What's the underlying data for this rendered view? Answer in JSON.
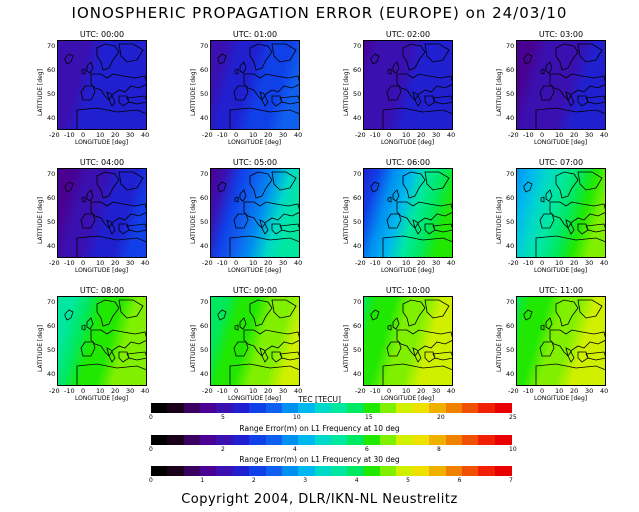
{
  "title": "IONOSPHERIC PROPAGATION ERROR (EUROPE) on 24/03/10",
  "copyright": "Copyright 2004, DLR/IKN-NL Neustrelitz",
  "axes": {
    "x_label": "LONGITUDE [deg]",
    "y_label": "LATITUDE [deg]",
    "x_ticks": [
      "-20",
      "-10",
      "0",
      "10",
      "20",
      "30",
      "40"
    ],
    "y_ticks": [
      "70",
      "60",
      "50",
      "40"
    ]
  },
  "panels": [
    {
      "utc": "UTC: 00:00",
      "tec_w": 4.5,
      "tec_e": 6.5
    },
    {
      "utc": "UTC: 01:00",
      "tec_w": 4.5,
      "tec_e": 8.0
    },
    {
      "utc": "UTC: 02:00",
      "tec_w": 4.0,
      "tec_e": 6.5
    },
    {
      "utc": "UTC: 03:00",
      "tec_w": 3.5,
      "tec_e": 6.0
    },
    {
      "utc": "UTC: 04:00",
      "tec_w": 3.0,
      "tec_e": 7.0
    },
    {
      "utc": "UTC: 05:00",
      "tec_w": 3.5,
      "tec_e": 13.0
    },
    {
      "utc": "UTC: 06:00",
      "tec_w": 6.0,
      "tec_e": 16.0
    },
    {
      "utc": "UTC: 07:00",
      "tec_w": 9.0,
      "tec_e": 17.0
    },
    {
      "utc": "UTC: 08:00",
      "tec_w": 13.0,
      "tec_e": 17.0
    },
    {
      "utc": "UTC: 09:00",
      "tec_w": 14.0,
      "tec_e": 17.5
    },
    {
      "utc": "UTC: 10:00",
      "tec_w": 14.5,
      "tec_e": 18.0
    },
    {
      "utc": "UTC: 11:00",
      "tec_w": 14.5,
      "tec_e": 18.0
    }
  ],
  "colorbars": [
    {
      "label": "TEC [TECU]",
      "ticks": [
        "0",
        "5",
        "10",
        "15",
        "20",
        "25"
      ]
    },
    {
      "label": "Range Error(m) on L1 Frequency at 10 deg",
      "ticks": [
        "0",
        "2",
        "4",
        "6",
        "8",
        "10"
      ]
    },
    {
      "label": "Range Error(m) on L1 Frequency at 30 deg",
      "ticks": [
        "0",
        "1",
        "2",
        "3",
        "4",
        "5",
        "6",
        "7"
      ]
    }
  ],
  "colors": [
    "#000000",
    "#1a0018",
    "#3a0060",
    "#4a0090",
    "#3a10b0",
    "#2020d0",
    "#1040e8",
    "#1060f0",
    "#0090f0",
    "#00b8f0",
    "#00d8c8",
    "#00e8a0",
    "#00e860",
    "#20e800",
    "#80f000",
    "#d0f000",
    "#f0e000",
    "#f0b000",
    "#f08000",
    "#f05000",
    "#f02000",
    "#e80000"
  ],
  "tec_max": 25
}
